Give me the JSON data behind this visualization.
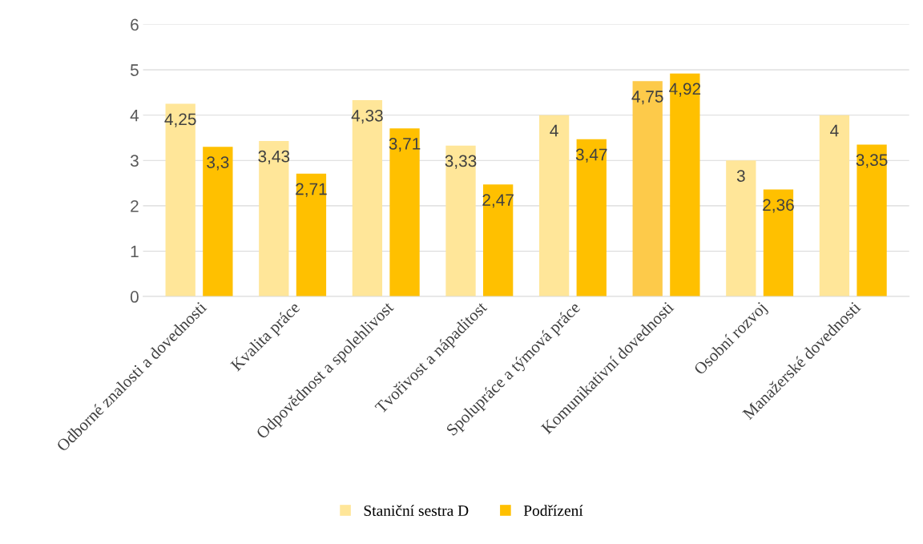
{
  "chart_data": {
    "type": "bar",
    "categories": [
      "Odborné znalosti a dovednosti",
      "Kvalita práce",
      "Odpovědnost a spolehlivost",
      "Tvořivost a nápaditost",
      "Spolupráce a týmová práce",
      "Komunikativní dovednosti",
      "Osobní rozvoj",
      "Manažerské dovednosti"
    ],
    "series": [
      {
        "name": "Staniční sestra D",
        "color": "#ffe699",
        "colors": [
          "#ffe699",
          "#ffe699",
          "#ffe699",
          "#ffe699",
          "#ffe699",
          "#fdca4a",
          "#ffe699",
          "#ffe699"
        ],
        "values": [
          4.25,
          3.43,
          4.33,
          3.33,
          4,
          4.75,
          3,
          4
        ],
        "value_labels": [
          "4,25",
          "3,43",
          "4,33",
          "3,33",
          "4",
          "4,75",
          "3",
          "4"
        ]
      },
      {
        "name": "Podřízení",
        "color": "#ffc000",
        "values": [
          3.3,
          2.71,
          3.71,
          2.47,
          3.47,
          4.92,
          2.36,
          3.35
        ],
        "value_labels": [
          "3,3",
          "2,71",
          "3,71",
          "2,47",
          "3,47",
          "4,92",
          "2,36",
          "3,35"
        ]
      }
    ],
    "ylim": [
      0,
      6
    ],
    "yticks": [
      0,
      1,
      2,
      3,
      4,
      5,
      6
    ],
    "grid": "y",
    "legend": "bottom"
  }
}
